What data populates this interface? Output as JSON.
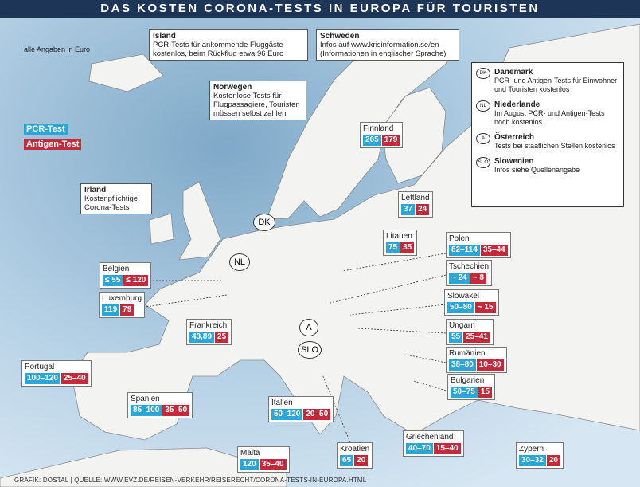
{
  "header": {
    "title": "DAS KOSTEN CORONA-TESTS IN EUROPA FÜR TOURISTEN"
  },
  "unit_note": "alle Angaben in Euro",
  "legend": {
    "pcr": "PCR-Test",
    "antigen": "Antigen-Test"
  },
  "info_boxes": [
    {
      "title": "Island",
      "lines": [
        "PCR-Tests für ankommende Fluggäste",
        "kostenlos, beim Rückflug etwa 96 Euro"
      ]
    },
    {
      "title": "Schweden",
      "lines": [
        "Infos auf www.krisinformation.se/en",
        "(Informationen in englischer Sprache)"
      ]
    },
    {
      "title": "Norwegen",
      "lines": [
        "Kostenlose Tests für",
        "Flugpassagiere, Touristen",
        "müssen selbst zahlen"
      ]
    },
    {
      "title": "Irland",
      "lines": [
        "Kostenpflichtige",
        "Corona-Tests"
      ]
    }
  ],
  "notes": [
    {
      "code": "DK",
      "title": "Dänemark",
      "lines": [
        "PCR- und Antigen-Tests für Einwohner",
        "und Touristen kostenlos"
      ]
    },
    {
      "code": "NL",
      "title": "Niederlande",
      "lines": [
        "Im August PCR- und Antigen-Tests",
        "noch kostenlos"
      ]
    },
    {
      "code": "A",
      "title": "Österreich",
      "lines": [
        "Tests bei staatlichen Stellen kostenlos"
      ]
    },
    {
      "code": "SLO",
      "title": "Slowenien",
      "lines": [
        "Infos siehe Quellenangabe"
      ]
    }
  ],
  "markers": [
    "DK",
    "NL",
    "A",
    "SLO"
  ],
  "countries": [
    {
      "name": "Finnland",
      "pcr": "265",
      "antigen": "179"
    },
    {
      "name": "Lettland",
      "pcr": "37",
      "antigen": "24"
    },
    {
      "name": "Litauen",
      "pcr": "75",
      "antigen": "35"
    },
    {
      "name": "Polen",
      "pcr": "82–114",
      "antigen": "35–44"
    },
    {
      "name": "Tschechien",
      "pcr": "~ 24",
      "antigen": "~ 8"
    },
    {
      "name": "Slowakei",
      "pcr": "50–80",
      "antigen": "~ 15"
    },
    {
      "name": "Ungarn",
      "pcr": "55",
      "antigen": "25–41"
    },
    {
      "name": "Rumänien",
      "pcr": "38–80",
      "antigen": "10–30"
    },
    {
      "name": "Bulgarien",
      "pcr": "50–75",
      "antigen": "15"
    },
    {
      "name": "Belgien",
      "pcr": "≤ 55",
      "antigen": "≤ 120"
    },
    {
      "name": "Luxemburg",
      "pcr": "119",
      "antigen": "79"
    },
    {
      "name": "Frankreich",
      "pcr": "43,89",
      "antigen": "25"
    },
    {
      "name": "Portugal",
      "pcr": "100–120",
      "antigen": "25–40"
    },
    {
      "name": "Spanien",
      "pcr": "85–100",
      "antigen": "35–50"
    },
    {
      "name": "Italien",
      "pcr": "50–120",
      "antigen": "20–50"
    },
    {
      "name": "Malta",
      "pcr": "120",
      "antigen": "35–40"
    },
    {
      "name": "Kroatien",
      "pcr": "65",
      "antigen": "20"
    },
    {
      "name": "Griechenland",
      "pcr": "40–70",
      "antigen": "15–40"
    },
    {
      "name": "Zypern",
      "pcr": "30–32",
      "antigen": "20"
    }
  ],
  "footer": "GRAFIK: DOSTAL | QUELLE: WWW.EVZ.DE/REISEN-VERKEHR/REISERECHT/CORONA-TESTS-IN-EUROPA.HTML"
}
